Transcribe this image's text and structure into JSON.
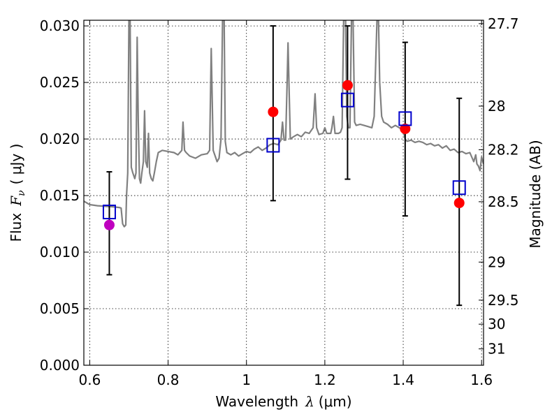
{
  "chart_data": {
    "type": "scatter",
    "xlabel_prefix": "Wavelength",
    "xlabel_symbol": "λ",
    "xlabel_unit": "(μm)",
    "ylabel_prefix": "Flux",
    "ylabel_symbol": "F",
    "ylabel_subscript": "ν",
    "ylabel_unit": "( μJy )",
    "ylabel_right": "Magnitude (AB)",
    "xlim": [
      0.585,
      1.605
    ],
    "ylim": [
      0.0,
      0.0305
    ],
    "grid": true,
    "grid_style": "dotted",
    "x_ticks": [
      {
        "value": 0.6,
        "label": "0.6"
      },
      {
        "value": 0.8,
        "label": "0.8"
      },
      {
        "value": 1.0,
        "label": "1"
      },
      {
        "value": 1.2,
        "label": "1.2"
      },
      {
        "value": 1.4,
        "label": "1.4"
      },
      {
        "value": 1.6,
        "label": "1.6"
      }
    ],
    "y_ticks": [
      {
        "value": 0.0,
        "label": "0.000"
      },
      {
        "value": 0.005,
        "label": "0.005"
      },
      {
        "value": 0.01,
        "label": "0.010"
      },
      {
        "value": 0.015,
        "label": "0.015"
      },
      {
        "value": 0.02,
        "label": "0.020"
      },
      {
        "value": 0.025,
        "label": "0.025"
      },
      {
        "value": 0.03,
        "label": "0.030"
      }
    ],
    "mag_ticks": [
      {
        "mag": 27.7,
        "label": "27.7"
      },
      {
        "mag": 28.0,
        "label": "28"
      },
      {
        "mag": 28.2,
        "label": "28.2"
      },
      {
        "mag": 28.5,
        "label": "28.5"
      },
      {
        "mag": 29.0,
        "label": "29"
      },
      {
        "mag": 29.5,
        "label": "29.5"
      },
      {
        "mag": 30.0,
        "label": "30"
      },
      {
        "mag": 31.0,
        "label": "31"
      }
    ],
    "model_spectrum": {
      "color": "#808080",
      "points": [
        [
          0.585,
          0.0145
        ],
        [
          0.6,
          0.0142
        ],
        [
          0.62,
          0.0141
        ],
        [
          0.64,
          0.01405
        ],
        [
          0.66,
          0.014
        ],
        [
          0.675,
          0.01395
        ],
        [
          0.68,
          0.0139
        ],
        [
          0.684,
          0.0125
        ],
        [
          0.688,
          0.01225
        ],
        [
          0.692,
          0.0124
        ],
        [
          0.694,
          0.015
        ],
        [
          0.697,
          0.017
        ],
        [
          0.7,
          0.0305
        ],
        [
          0.703,
          0.0305
        ],
        [
          0.706,
          0.0175
        ],
        [
          0.71,
          0.017
        ],
        [
          0.715,
          0.0165
        ],
        [
          0.718,
          0.017
        ],
        [
          0.721,
          0.029
        ],
        [
          0.724,
          0.0215
        ],
        [
          0.727,
          0.0165
        ],
        [
          0.73,
          0.0161
        ],
        [
          0.733,
          0.017
        ],
        [
          0.737,
          0.018
        ],
        [
          0.74,
          0.0225
        ],
        [
          0.743,
          0.018
        ],
        [
          0.747,
          0.0175
        ],
        [
          0.75,
          0.0205
        ],
        [
          0.753,
          0.017
        ],
        [
          0.757,
          0.0165
        ],
        [
          0.761,
          0.0163
        ],
        [
          0.765,
          0.017
        ],
        [
          0.77,
          0.018
        ],
        [
          0.775,
          0.0188
        ],
        [
          0.785,
          0.019
        ],
        [
          0.8,
          0.0189
        ],
        [
          0.815,
          0.0188
        ],
        [
          0.825,
          0.0186
        ],
        [
          0.83,
          0.0188
        ],
        [
          0.835,
          0.019
        ],
        [
          0.838,
          0.0215
        ],
        [
          0.842,
          0.019
        ],
        [
          0.846,
          0.0188
        ],
        [
          0.855,
          0.0185
        ],
        [
          0.87,
          0.0183
        ],
        [
          0.885,
          0.0186
        ],
        [
          0.9,
          0.0187
        ],
        [
          0.906,
          0.019
        ],
        [
          0.91,
          0.028
        ],
        [
          0.915,
          0.019
        ],
        [
          0.92,
          0.0185
        ],
        [
          0.925,
          0.018
        ],
        [
          0.93,
          0.0183
        ],
        [
          0.935,
          0.02
        ],
        [
          0.939,
          0.0305
        ],
        [
          0.943,
          0.0305
        ],
        [
          0.946,
          0.0198
        ],
        [
          0.95,
          0.0188
        ],
        [
          0.96,
          0.0186
        ],
        [
          0.97,
          0.0188
        ],
        [
          0.98,
          0.0185
        ],
        [
          0.99,
          0.0187
        ],
        [
          1.0,
          0.0189
        ],
        [
          1.01,
          0.0188
        ],
        [
          1.02,
          0.0191
        ],
        [
          1.03,
          0.0193
        ],
        [
          1.04,
          0.019
        ],
        [
          1.05,
          0.0192
        ],
        [
          1.06,
          0.0195
        ],
        [
          1.07,
          0.0196
        ],
        [
          1.08,
          0.0195
        ],
        [
          1.088,
          0.0199
        ],
        [
          1.092,
          0.0215
        ],
        [
          1.096,
          0.0199
        ],
        [
          1.1,
          0.0199
        ],
        [
          1.103,
          0.024
        ],
        [
          1.106,
          0.0285
        ],
        [
          1.109,
          0.024
        ],
        [
          1.112,
          0.02
        ],
        [
          1.12,
          0.0202
        ],
        [
          1.13,
          0.0204
        ],
        [
          1.14,
          0.0202
        ],
        [
          1.15,
          0.0206
        ],
        [
          1.16,
          0.0205
        ],
        [
          1.17,
          0.021
        ],
        [
          1.175,
          0.024
        ],
        [
          1.179,
          0.021
        ],
        [
          1.185,
          0.0204
        ],
        [
          1.195,
          0.0205
        ],
        [
          1.2,
          0.021
        ],
        [
          1.205,
          0.0205
        ],
        [
          1.21,
          0.0205
        ],
        [
          1.215,
          0.0205
        ],
        [
          1.218,
          0.021
        ],
        [
          1.222,
          0.022
        ],
        [
          1.226,
          0.0205
        ],
        [
          1.235,
          0.0205
        ],
        [
          1.24,
          0.0206
        ],
        [
          1.244,
          0.021
        ],
        [
          1.248,
          0.0305
        ],
        [
          1.253,
          0.0305
        ],
        [
          1.256,
          0.022
        ],
        [
          1.26,
          0.021
        ],
        [
          1.264,
          0.021
        ],
        [
          1.268,
          0.0305
        ],
        [
          1.272,
          0.0305
        ],
        [
          1.276,
          0.0215
        ],
        [
          1.28,
          0.0212
        ],
        [
          1.29,
          0.0213
        ],
        [
          1.3,
          0.0212
        ],
        [
          1.31,
          0.0211
        ],
        [
          1.32,
          0.021
        ],
        [
          1.326,
          0.022
        ],
        [
          1.33,
          0.027
        ],
        [
          1.333,
          0.0305
        ],
        [
          1.337,
          0.0305
        ],
        [
          1.34,
          0.025
        ],
        [
          1.345,
          0.022
        ],
        [
          1.35,
          0.0215
        ],
        [
          1.36,
          0.0213
        ],
        [
          1.37,
          0.021
        ],
        [
          1.38,
          0.0212
        ],
        [
          1.39,
          0.021
        ],
        [
          1.4,
          0.0208
        ],
        [
          1.405,
          0.02
        ],
        [
          1.41,
          0.0198
        ],
        [
          1.42,
          0.0199
        ],
        [
          1.43,
          0.0197
        ],
        [
          1.44,
          0.0198
        ],
        [
          1.45,
          0.0197
        ],
        [
          1.46,
          0.0195
        ],
        [
          1.47,
          0.0196
        ],
        [
          1.48,
          0.0194
        ],
        [
          1.49,
          0.0195
        ],
        [
          1.5,
          0.0192
        ],
        [
          1.51,
          0.0194
        ],
        [
          1.52,
          0.019
        ],
        [
          1.53,
          0.0191
        ],
        [
          1.54,
          0.0188
        ],
        [
          1.55,
          0.0189
        ],
        [
          1.56,
          0.0187
        ],
        [
          1.57,
          0.0188
        ],
        [
          1.575,
          0.0184
        ],
        [
          1.58,
          0.018
        ],
        [
          1.585,
          0.0186
        ],
        [
          1.588,
          0.0178
        ],
        [
          1.592,
          0.0176
        ],
        [
          1.596,
          0.0172
        ],
        [
          1.6,
          0.0184
        ],
        [
          1.605,
          0.0178
        ]
      ]
    },
    "observed": {
      "color": "#ff0000",
      "points": [
        {
          "x": 0.65,
          "y": 0.0124,
          "color": "#bf00bf"
        },
        {
          "x": 1.068,
          "y": 0.0224
        },
        {
          "x": 1.258,
          "y": 0.02475
        },
        {
          "x": 1.405,
          "y": 0.0209
        },
        {
          "x": 1.543,
          "y": 0.01435
        }
      ]
    },
    "model_photometry": {
      "color": "#0000cc",
      "points": [
        {
          "x": 0.65,
          "y": 0.01355,
          "err_low": 0.008,
          "err_high": 0.0171
        },
        {
          "x": 1.068,
          "y": 0.01945,
          "err_low": 0.01455,
          "err_high": 0.03
        },
        {
          "x": 1.258,
          "y": 0.02345,
          "err_low": 0.01645,
          "err_high": 0.03
        },
        {
          "x": 1.405,
          "y": 0.0218,
          "err_low": 0.0132,
          "err_high": 0.02855
        },
        {
          "x": 1.543,
          "y": 0.0157,
          "err_low": 0.0053,
          "err_high": 0.0236
        }
      ]
    }
  }
}
